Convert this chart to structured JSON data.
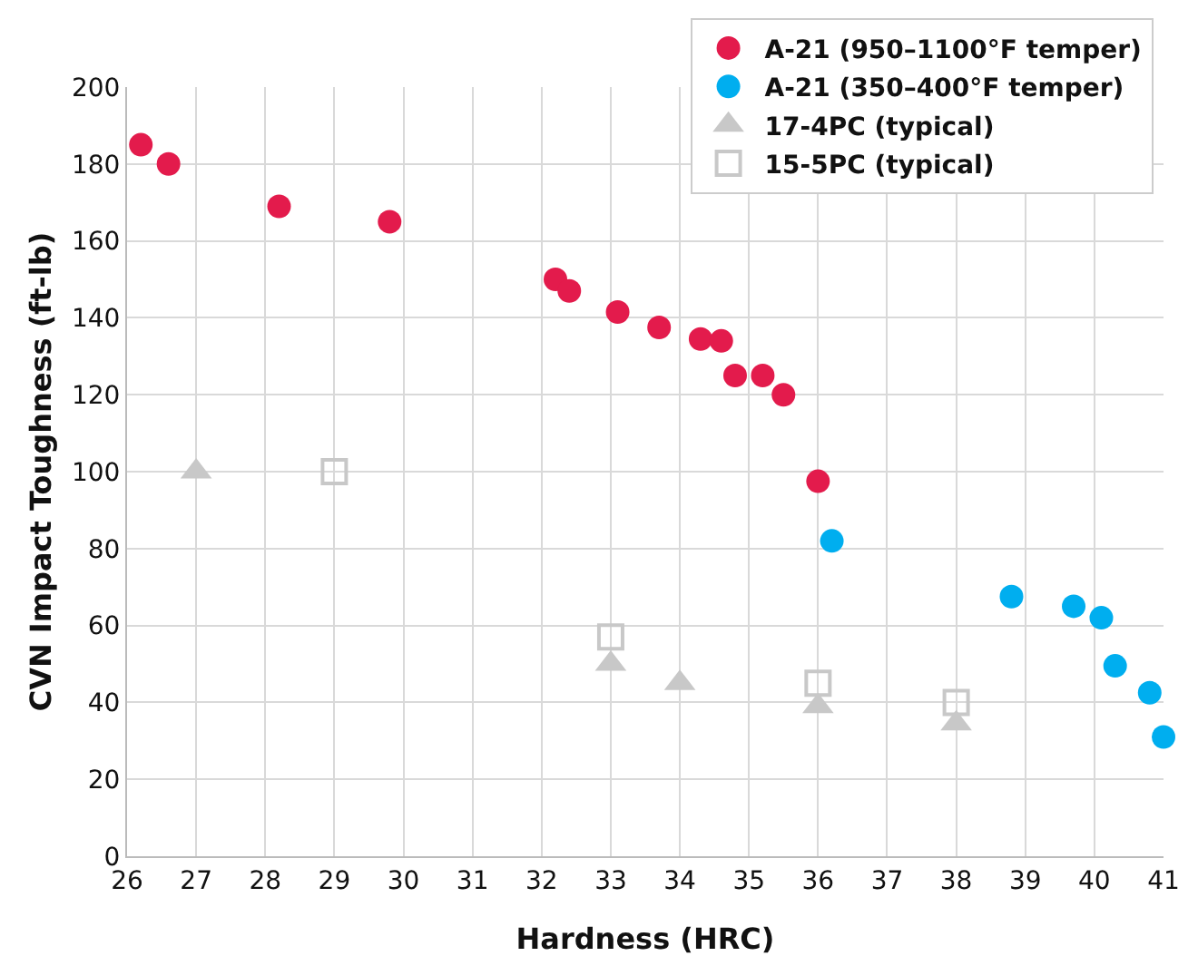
{
  "chart_data": {
    "type": "scatter",
    "xlabel": "Hardness (HRC)",
    "ylabel": "CVN Impact Toughness (ft-lb)",
    "xlim": [
      26,
      41
    ],
    "xticks": [
      26,
      27,
      28,
      29,
      30,
      31,
      32,
      33,
      34,
      35,
      36,
      37,
      38,
      39,
      40,
      41
    ],
    "ylim": [
      0,
      200
    ],
    "yticks": [
      0,
      20,
      40,
      60,
      80,
      100,
      120,
      140,
      160,
      180,
      200
    ],
    "grid": true,
    "legend": "top right",
    "series": [
      {
        "name": "A-21 (950–1100°F temper)",
        "color": "#e31b4c",
        "marker": "circle",
        "x": [
          26.2,
          26.6,
          28.2,
          29.8,
          32.2,
          32.4,
          33.1,
          33.7,
          34.3,
          34.6,
          34.8,
          35.2,
          35.5,
          36.0
        ],
        "values": [
          185,
          180,
          169,
          165,
          150,
          147,
          141.5,
          137.5,
          134.5,
          134,
          125,
          125,
          120,
          97.5
        ]
      },
      {
        "name": "A-21 (350–400°F temper)",
        "color": "#00aeef",
        "marker": "circle",
        "x": [
          36.2,
          38.8,
          39.7,
          40.1,
          40.3,
          40.8,
          41.0
        ],
        "values": [
          82,
          67.5,
          65,
          62,
          49.5,
          42.5,
          31
        ]
      },
      {
        "name": "17-4PC (typical)",
        "color": "#c8c8c8",
        "marker": "triangle",
        "x": [
          27,
          33,
          34,
          36,
          38
        ],
        "values": [
          100,
          50,
          45,
          39,
          34.5
        ]
      },
      {
        "name": "15-5PC (typical)",
        "color": "#c8c8c8",
        "marker": "square",
        "x": [
          29,
          33,
          36,
          38
        ],
        "values": [
          100,
          57,
          45,
          40
        ]
      }
    ]
  }
}
